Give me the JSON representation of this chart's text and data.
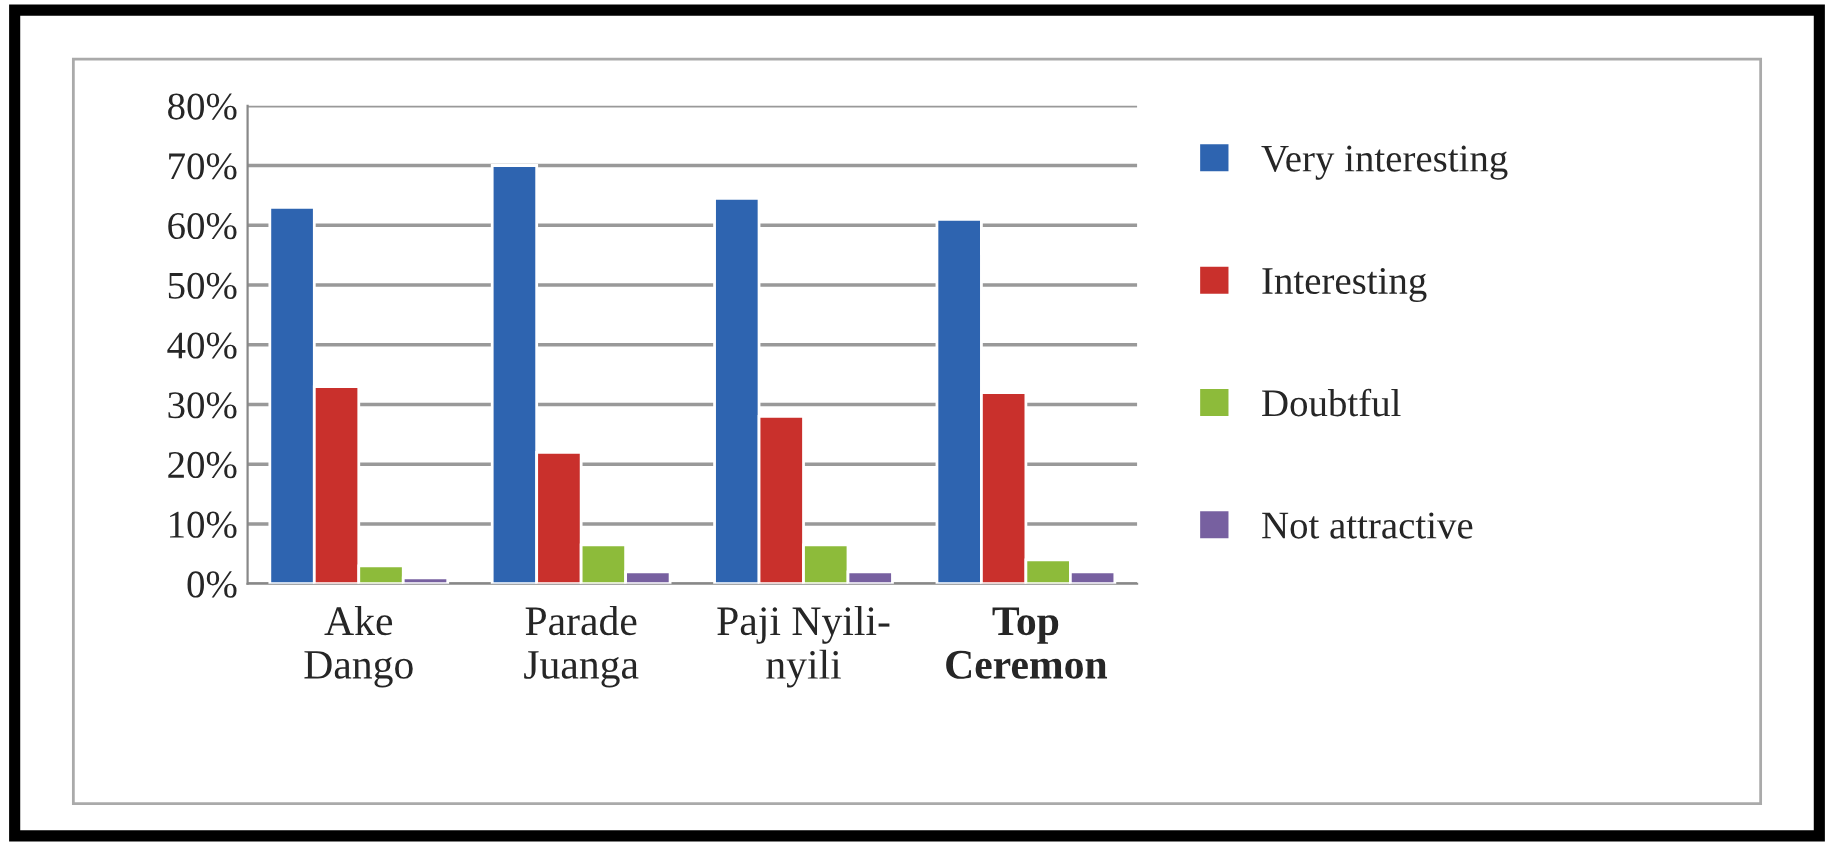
{
  "chart_data": {
    "type": "bar",
    "categories": [
      "Ake\nDango",
      "Parade\nJuanga",
      "Paji Nyili-\nnyili",
      "Top\nCeremon"
    ],
    "series": [
      {
        "name": "Very interesting",
        "color": "#2e64b0",
        "values": [
          63,
          70,
          64.5,
          61
        ]
      },
      {
        "name": "Interesting",
        "color": "#c9302c",
        "values": [
          33,
          22,
          28,
          32
        ]
      },
      {
        "name": "Doubtful",
        "color": "#8dbb3a",
        "values": [
          3,
          6.5,
          6.5,
          4
        ]
      },
      {
        "name": "Not attractive",
        "color": "#7760a0",
        "values": [
          1,
          2,
          2,
          2
        ]
      }
    ],
    "ylim": [
      0,
      80
    ],
    "yticks": [
      {
        "value": 0,
        "label": "0%"
      },
      {
        "value": 10,
        "label": "10%"
      },
      {
        "value": 20,
        "label": "20%"
      },
      {
        "value": 30,
        "label": "30%"
      },
      {
        "value": 40,
        "label": "40%"
      },
      {
        "value": 50,
        "label": "50%"
      },
      {
        "value": 60,
        "label": "60%"
      },
      {
        "value": 70,
        "label": "70%"
      },
      {
        "value": 80,
        "label": "80%"
      }
    ],
    "grid": "y",
    "legend": "right"
  }
}
